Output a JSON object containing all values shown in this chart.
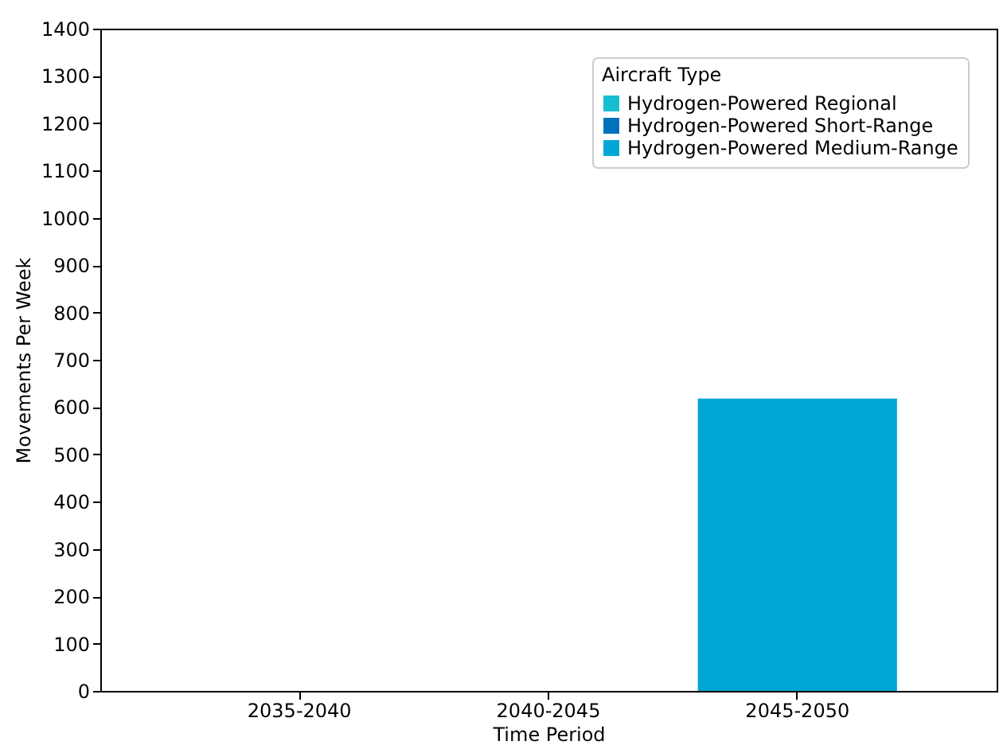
{
  "chart_data": {
    "type": "bar",
    "xlabel": "Time Period",
    "ylabel": "Movements Per Week",
    "legend_title": "Aircraft Type",
    "legend": "top right",
    "grid": false,
    "categories": [
      "2035-2040",
      "2040-2045",
      "2045-2050"
    ],
    "series": [
      {
        "name": "Hydrogen-Powered Regional",
        "color": "#17becf",
        "values": [
          0,
          0,
          0
        ]
      },
      {
        "name": "Hydrogen-Powered Short-Range",
        "color": "#0072bd",
        "values": [
          0,
          0,
          0
        ]
      },
      {
        "name": "Hydrogen-Powered Medium-Range",
        "color": "#00a6d6",
        "values": [
          0,
          0,
          618
        ]
      }
    ],
    "ylim": [
      0,
      1400
    ],
    "yticks": [
      0,
      100,
      200,
      300,
      400,
      500,
      600,
      700,
      800,
      900,
      1000,
      1100,
      1200,
      1300,
      1400
    ]
  }
}
